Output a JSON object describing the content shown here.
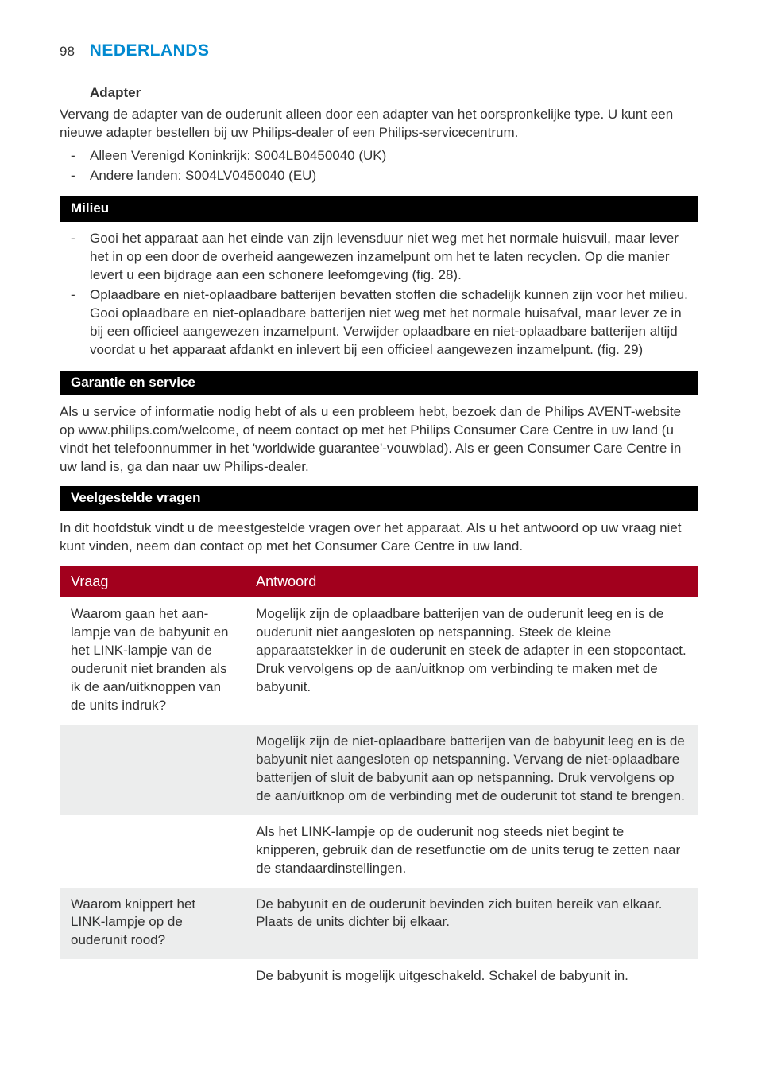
{
  "colors": {
    "accent": "#0089d0",
    "sectionBar": "#000000",
    "tableHeader": "#a2001d",
    "rowAlt": "#eceded",
    "rowPlain": "#ffffff",
    "text": "#333333"
  },
  "header": {
    "pageNumber": "98",
    "language": "NEDERLANDS"
  },
  "adapter": {
    "title": "Adapter",
    "intro": "Vervang de adapter van de ouderunit alleen door een adapter van het oorspronkelijke type. U kunt een nieuwe adapter bestellen bij uw Philips-dealer of een Philips-servicecentrum.",
    "items": [
      "Alleen Verenigd Koninkrijk: S004LB0450040 (UK)",
      "Andere landen: S004LV0450040 (EU)"
    ]
  },
  "milieu": {
    "title": "Milieu",
    "items": [
      "Gooi het apparaat aan het einde van zijn levensduur niet weg met het normale huisvuil, maar lever het in op een door de overheid aangewezen inzamelpunt om het te laten recyclen. Op die manier levert u een bijdrage aan een schonere leefomgeving (fig. 28).",
      "Oplaadbare en niet-oplaadbare batterijen bevatten stoffen die schadelijk kunnen zijn voor het milieu. Gooi oplaadbare en niet-oplaadbare batterijen niet weg met het normale huisafval, maar lever ze in bij een officieel aangewezen inzamelpunt. Verwijder oplaadbare en niet-oplaadbare batterijen altijd voordat u het apparaat afdankt en inlevert bij een officieel aangewezen inzamelpunt.  (fig. 29)"
    ]
  },
  "garantie": {
    "title": "Garantie en service",
    "body": "Als u service of informatie nodig hebt of als u een probleem hebt, bezoek dan de Philips AVENT-website op www.philips.com/welcome, of neem contact op met het Philips Consumer Care Centre in uw land (u vindt het telefoonnummer in het 'worldwide guarantee'-vouwblad). Als er geen Consumer Care Centre in uw land is, ga dan naar uw Philips-dealer."
  },
  "faq": {
    "title": "Veelgestelde vragen",
    "intro": "In dit hoofdstuk vindt u de meestgestelde vragen over het apparaat. Als u het antwoord op uw vraag niet kunt vinden, neem dan contact op met het Consumer Care Centre in uw land.",
    "headers": {
      "q": "Vraag",
      "a": "Antwoord"
    },
    "rows": [
      {
        "q": "Waarom gaan het aan-lampje van de babyunit en het LINK-lampje van de ouderunit niet branden als ik de aan/uitknoppen van de units indruk?",
        "a": "Mogelijk zijn de oplaadbare batterijen van de ouderunit leeg en is de ouderunit niet aangesloten op netspanning. Steek de kleine apparaatstekker in de ouderunit en steek de adapter in een stopcontact. Druk vervolgens op de aan/uitknop om verbinding te maken met de babyunit.",
        "bg": "plain"
      },
      {
        "q": "",
        "a": "Mogelijk zijn de niet-oplaadbare batterijen van de babyunit leeg en is de babyunit niet aangesloten op netspanning. Vervang de niet-oplaadbare batterijen of sluit de babyunit aan op netspanning. Druk vervolgens op de aan/uitknop om de verbinding met de ouderunit tot stand te brengen.",
        "bg": "alt"
      },
      {
        "q": "",
        "a": "Als het LINK-lampje op de ouderunit nog steeds niet begint te knipperen, gebruik dan de resetfunctie om de units terug te zetten naar de standaardinstellingen.",
        "bg": "plain"
      },
      {
        "q": "Waarom knippert het LINK-lampje op de ouderunit rood?",
        "a": "De babyunit en de ouderunit bevinden zich buiten bereik van elkaar. Plaats de units dichter bij elkaar.",
        "bg": "alt"
      },
      {
        "q": "",
        "a": "De babyunit is mogelijk uitgeschakeld. Schakel de babyunit in.",
        "bg": "plain"
      }
    ]
  }
}
